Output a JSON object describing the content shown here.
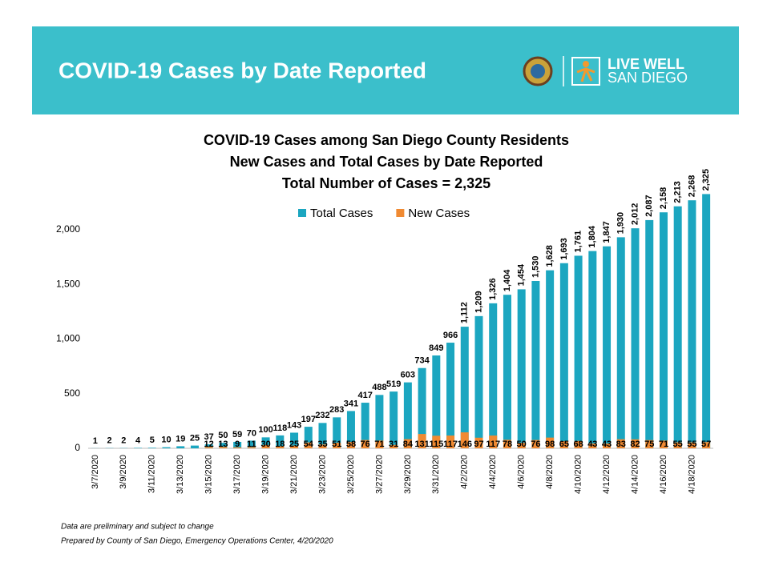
{
  "header": {
    "title": "COVID-19 Cases by Date Reported",
    "logo_line1": "LIVE WELL",
    "logo_line2": "SAN DIEGO"
  },
  "chart_data": {
    "type": "bar",
    "title": "COVID-19 Cases among San Diego County Residents",
    "subtitle": [
      "New Cases and Total Cases by Date Reported",
      "Total Number of Cases = 2,325"
    ],
    "categories": [
      "3/7/2020",
      null,
      "3/9/2020",
      null,
      "3/11/2020",
      null,
      "3/13/2020",
      null,
      "3/15/2020",
      null,
      "3/17/2020",
      null,
      "3/19/2020",
      null,
      "3/21/2020",
      null,
      "3/23/2020",
      null,
      "3/25/2020",
      null,
      "3/27/2020",
      null,
      "3/29/2020",
      null,
      "3/31/2020",
      null,
      "4/2/2020",
      null,
      "4/4/2020",
      null,
      "4/6/2020",
      null,
      "4/8/2020",
      null,
      "4/10/2020",
      null,
      "4/12/2020",
      null,
      "4/14/2020",
      null,
      "4/16/2020",
      null,
      "4/18/2020",
      null
    ],
    "series": [
      {
        "name": "Total Cases",
        "color": "#1ba6c0",
        "values": [
          1,
          2,
          2,
          4,
          5,
          10,
          19,
          25,
          37,
          50,
          59,
          70,
          100,
          118,
          143,
          197,
          232,
          283,
          341,
          417,
          488,
          519,
          603,
          734,
          849,
          966,
          1112,
          1209,
          1326,
          1404,
          1454,
          1530,
          1628,
          1693,
          1761,
          1804,
          1847,
          1930,
          2012,
          2087,
          2158,
          2213,
          2268,
          2325
        ],
        "value_labels": [
          "1",
          "2",
          "2",
          "4",
          "5",
          "10",
          "19",
          "25",
          "37",
          "50",
          "59",
          "70",
          "100",
          "118",
          "143",
          "197",
          "232",
          "283",
          "341",
          "417",
          "488",
          "519",
          "603",
          "734",
          "849",
          "966",
          "1,112",
          "1,209",
          "1,326",
          "1,404",
          "1,454",
          "1,530",
          "1,628",
          "1,693",
          "1,761",
          "1,804",
          "1,847",
          "1,930",
          "2,012",
          "2,087",
          "2,158",
          "2,213",
          "2,268",
          "2,325"
        ]
      },
      {
        "name": "New Cases",
        "color": "#f08a32",
        "values": [
          null,
          null,
          null,
          null,
          null,
          null,
          null,
          null,
          12,
          13,
          9,
          11,
          30,
          18,
          25,
          54,
          35,
          51,
          58,
          76,
          71,
          31,
          84,
          131,
          115,
          117,
          146,
          97,
          117,
          78,
          50,
          76,
          98,
          65,
          68,
          43,
          43,
          83,
          82,
          75,
          71,
          55,
          55,
          57
        ]
      }
    ],
    "ylim": [
      0,
      2350
    ],
    "yticks": [
      0,
      500,
      {
        "value": 1000,
        "label": "1,000"
      },
      {
        "value": 1500,
        "label": "1,500"
      },
      {
        "value": 2000,
        "label": "2,000"
      }
    ],
    "legend": "top"
  },
  "footnotes": [
    "Data are preliminary and subject to change",
    "Prepared by County of San Diego, Emergency Operations Center, 4/20/2020"
  ]
}
